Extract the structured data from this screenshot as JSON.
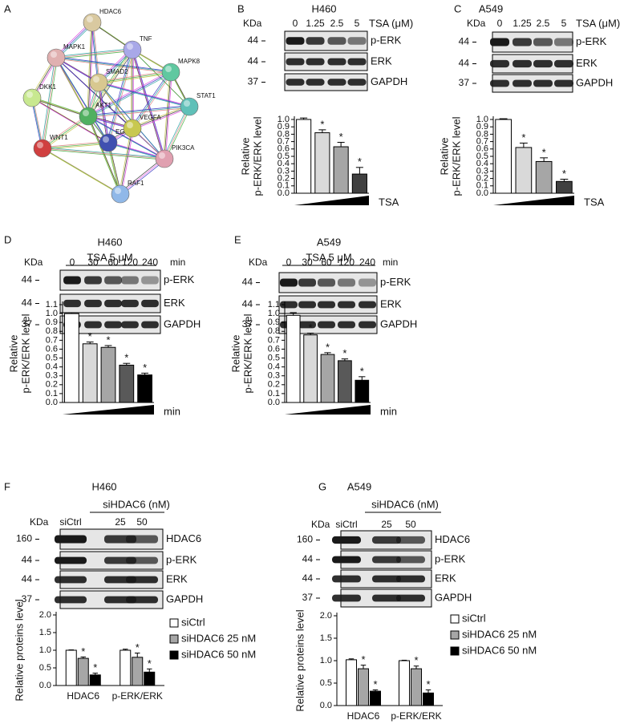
{
  "panel_letters": [
    "A",
    "B",
    "C",
    "D",
    "E",
    "F",
    "G"
  ],
  "network": {
    "nodes": [
      "HDAC6",
      "MAPK1",
      "TNF",
      "MAPK8",
      "SMAD2",
      "DKK1",
      "AKT1",
      "STAT1",
      "EGF",
      "VEGFA",
      "WNT1",
      "PIK3CA",
      "RAF1"
    ]
  },
  "blots": [
    {
      "cell_line": "H460",
      "kda": "KDa",
      "treatment": "TSA (μM)",
      "lanes": [
        "0",
        "1.25",
        "2.5",
        "5"
      ],
      "markers": [
        "44",
        "44",
        "37"
      ],
      "rows": [
        "p-ERK",
        "ERK",
        "GAPDH"
      ]
    },
    {
      "cell_line": "A549",
      "kda": "KDa",
      "treatment": "TSA (μM)",
      "lanes": [
        "0",
        "1.25",
        "2.5",
        "5"
      ],
      "markers": [
        "44",
        "44",
        "37"
      ],
      "rows": [
        "p-ERK",
        "ERK",
        "GAPDH"
      ]
    },
    {
      "cell_line": "H460",
      "kda": "KDa",
      "treatment": "TSA 5 μM",
      "lanes": [
        "0",
        "30",
        "60",
        "120",
        "240"
      ],
      "unit": "min",
      "markers": [
        "44",
        "44",
        "37"
      ],
      "rows": [
        "p-ERK",
        "ERK",
        "GAPDH"
      ]
    },
    {
      "cell_line": "A549",
      "kda": "KDa",
      "treatment": "TSA 5 μM",
      "lanes": [
        "0",
        "30",
        "60",
        "120",
        "240"
      ],
      "unit": "min",
      "markers": [
        "44",
        "44",
        "37"
      ],
      "rows": [
        "p-ERK",
        "ERK",
        "GAPDH"
      ]
    },
    {
      "cell_line": "H460",
      "kda": "KDa",
      "treatment": "siHDAC6 (nM)",
      "lanes": [
        "siCtrl",
        "25",
        "50"
      ],
      "markers": [
        "160",
        "44",
        "44",
        "37"
      ],
      "rows": [
        "HDAC6",
        "p-ERK",
        "ERK",
        "GAPDH"
      ]
    },
    {
      "cell_line": "A549",
      "kda": "KDa",
      "treatment": "siHDAC6 (nM)",
      "lanes": [
        "siCtrl",
        "25",
        "50"
      ],
      "markers": [
        "160",
        "44",
        "44",
        "37"
      ],
      "rows": [
        "HDAC6",
        "p-ERK",
        "ERK",
        "GAPDH"
      ]
    }
  ],
  "chart_data": [
    {
      "type": "bar",
      "ylabel": [
        "Relative",
        "p-ERK/ERK level"
      ],
      "xlabel": "TSA",
      "values": [
        1.0,
        0.82,
        0.63,
        0.26
      ],
      "errors": [
        0.02,
        0.04,
        0.06,
        0.09
      ],
      "significance": [
        null,
        "*",
        "*",
        "*"
      ],
      "colors": [
        "#ffffff",
        "#d9d9d9",
        "#a6a6a6",
        "#404040"
      ],
      "ylim": [
        0,
        1.0
      ],
      "yticks": [
        {
          "value": 0,
          "label": "0.0"
        },
        0.1,
        0.2,
        0.3,
        0.4,
        0.5,
        0.6,
        0.7,
        0.8,
        0.9,
        {
          "value": 1.0,
          "label": "1.0"
        }
      ]
    },
    {
      "type": "bar",
      "ylabel": [
        "Relative",
        "p-ERK/ERK level"
      ],
      "xlabel": "TSA",
      "values": [
        1.0,
        0.62,
        0.43,
        0.16
      ],
      "errors": [
        0.01,
        0.06,
        0.05,
        0.03
      ],
      "significance": [
        null,
        "*",
        "*",
        "*"
      ],
      "colors": [
        "#ffffff",
        "#d9d9d9",
        "#a6a6a6",
        "#404040"
      ],
      "ylim": [
        0,
        1.0
      ],
      "yticks": [
        {
          "value": 0,
          "label": "0.0"
        },
        0.1,
        0.2,
        0.3,
        0.4,
        0.5,
        0.6,
        0.7,
        0.8,
        0.9,
        {
          "value": 1.0,
          "label": "1.0"
        }
      ]
    },
    {
      "type": "bar",
      "ylabel": [
        "Relative",
        "p-ERK/ERK level"
      ],
      "xlabel": "min",
      "values": [
        1.0,
        0.66,
        0.62,
        0.42,
        0.31
      ],
      "errors": [
        0.01,
        0.02,
        0.02,
        0.02,
        0.02
      ],
      "significance": [
        null,
        "*",
        "*",
        "*",
        "*"
      ],
      "colors": [
        "#ffffff",
        "#d9d9d9",
        "#a6a6a6",
        "#595959",
        "#000000"
      ],
      "ylim": [
        0,
        1.1
      ],
      "yticks": [
        {
          "value": 0,
          "label": "0.0"
        },
        0.1,
        0.2,
        0.3,
        0.4,
        0.5,
        0.6,
        0.7,
        0.8,
        0.9,
        {
          "value": 1.0,
          "label": "1.0"
        },
        1.1
      ]
    },
    {
      "type": "bar",
      "ylabel": [
        "Relative",
        "p-ERK/ERK level"
      ],
      "xlabel": "min",
      "values": [
        0.98,
        0.76,
        0.54,
        0.47,
        0.25
      ],
      "errors": [
        0.03,
        0.02,
        0.02,
        0.02,
        0.04
      ],
      "significance": [
        null,
        "*",
        "*",
        "*",
        "*"
      ],
      "colors": [
        "#ffffff",
        "#d9d9d9",
        "#a6a6a6",
        "#595959",
        "#000000"
      ],
      "ylim": [
        0,
        1.1
      ],
      "yticks": [
        {
          "value": 0,
          "label": "0.0"
        },
        0.1,
        0.2,
        0.3,
        0.4,
        0.5,
        0.6,
        0.7,
        0.8,
        0.9,
        {
          "value": 1.0,
          "label": "1.0"
        },
        1.1
      ]
    },
    {
      "type": "bar",
      "ylabel": [
        "Relative proteins level"
      ],
      "categories": [
        "HDAC6",
        "p-ERK/ERK"
      ],
      "series": [
        {
          "name": "siCtrl",
          "color": "#ffffff",
          "values": [
            1.0,
            1.0
          ],
          "errors": [
            0.01,
            0.03
          ],
          "significance": [
            null,
            null
          ]
        },
        {
          "name": "siHDAC6 25 nM",
          "color": "#a6a6a6",
          "values": [
            0.77,
            0.8
          ],
          "errors": [
            0.04,
            0.12
          ],
          "significance": [
            "*",
            "*"
          ]
        },
        {
          "name": "siHDAC6 50 nM",
          "color": "#000000",
          "values": [
            0.3,
            0.38
          ],
          "errors": [
            0.05,
            0.09
          ],
          "significance": [
            "*",
            "*"
          ]
        }
      ],
      "ylim": [
        0,
        2.0
      ],
      "yticks": [
        {
          "value": 0,
          "label": "0.0"
        },
        0.5,
        {
          "value": 1.0,
          "label": "1.0"
        },
        1.5,
        {
          "value": 2.0,
          "label": "2.0"
        }
      ]
    },
    {
      "type": "bar",
      "ylabel": [
        "Relative proteins level"
      ],
      "categories": [
        "HDAC6",
        "p-ERK/ERK"
      ],
      "series": [
        {
          "name": "siCtrl",
          "color": "#ffffff",
          "values": [
            1.02,
            1.0
          ],
          "errors": [
            0.02,
            0.01
          ],
          "significance": [
            null,
            null
          ]
        },
        {
          "name": "siHDAC6 25 nM",
          "color": "#a6a6a6",
          "values": [
            0.82,
            0.82
          ],
          "errors": [
            0.08,
            0.06
          ],
          "significance": [
            "*",
            "*"
          ]
        },
        {
          "name": "siHDAC6 50 nM",
          "color": "#000000",
          "values": [
            0.32,
            0.28
          ],
          "errors": [
            0.03,
            0.07
          ],
          "significance": [
            "*",
            "*"
          ]
        }
      ],
      "ylim": [
        0,
        2.0
      ],
      "yticks": [
        {
          "value": 0,
          "label": "0.0"
        },
        0.5,
        {
          "value": 1.0,
          "label": "1.0"
        },
        1.5,
        {
          "value": 2.0,
          "label": "2.0"
        }
      ]
    }
  ]
}
